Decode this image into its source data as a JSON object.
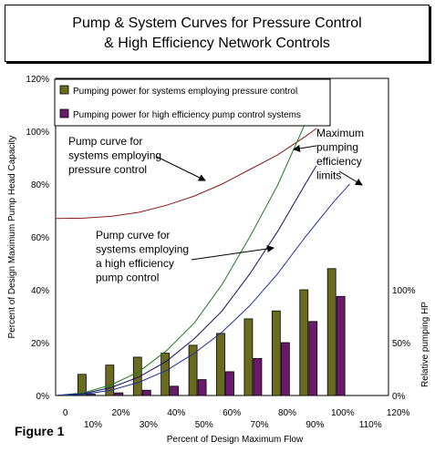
{
  "title": {
    "line1": "Pump & System Curves for Pressure Control",
    "line2": "& High Efficiency Network Controls"
  },
  "figure_label": "Figure 1",
  "chart_data": {
    "type": "bar",
    "xlabel": "Percent of Design Maximum Flow",
    "ylabel": "Percent of Design Maximum Pump Head Capacity",
    "y2label": "Relative pumping HP",
    "x_ticks_upper": [
      "0",
      "20%",
      "40%",
      "60%",
      "80%",
      "100%",
      "120%"
    ],
    "x_ticks_lower": [
      "10%",
      "30%",
      "50%",
      "70%",
      "90%",
      "110%"
    ],
    "y_ticks": [
      "0%",
      "20%",
      "40%",
      "60%",
      "80%",
      "100%",
      "120%"
    ],
    "y2_ticks": [
      "0%",
      "50%",
      "100%"
    ],
    "xlim": [
      0,
      120
    ],
    "ylim": [
      0,
      120
    ],
    "categories": [
      10,
      20,
      30,
      40,
      50,
      60,
      70,
      80,
      90,
      100
    ],
    "series": [
      {
        "name": "Pumping power for systems employing pressure control",
        "color": "#6b6b1f",
        "values": [
          8,
          11.5,
          14.5,
          16,
          19,
          23.5,
          29,
          32,
          40,
          48
        ]
      },
      {
        "name": "Pumping power for high efficiency pump control systems",
        "color": "#6b1a6b",
        "values": [
          0.5,
          1,
          2,
          3.5,
          6,
          9,
          14,
          20,
          28,
          37.5
        ]
      }
    ],
    "curves": [
      {
        "id": "pump-curve",
        "color": "#8b1a1a",
        "points": [
          [
            0,
            67
          ],
          [
            10,
            67.1
          ],
          [
            20,
            67.8
          ],
          [
            30,
            69.3
          ],
          [
            40,
            72
          ],
          [
            50,
            75.5
          ],
          [
            60,
            80
          ],
          [
            70,
            85.5
          ],
          [
            80,
            91
          ],
          [
            90,
            98
          ],
          [
            94,
            101
          ]
        ]
      },
      {
        "id": "system-curve-pressure",
        "color": "#1f7a1f",
        "points": [
          [
            0,
            0
          ],
          [
            10,
            1
          ],
          [
            20,
            4
          ],
          [
            30,
            9
          ],
          [
            40,
            17
          ],
          [
            50,
            27.5
          ],
          [
            60,
            42
          ],
          [
            70,
            60
          ],
          [
            80,
            79.5
          ],
          [
            90,
            103
          ],
          [
            95,
            115
          ]
        ]
      },
      {
        "id": "system-curve-high-efficiency",
        "color": "#101060",
        "points": [
          [
            0,
            0
          ],
          [
            10,
            0.7
          ],
          [
            20,
            3
          ],
          [
            30,
            7
          ],
          [
            40,
            13
          ],
          [
            50,
            21.5
          ],
          [
            60,
            32
          ],
          [
            70,
            46
          ],
          [
            80,
            62
          ],
          [
            90,
            80
          ],
          [
            94,
            87
          ]
        ]
      },
      {
        "id": "max-efficiency-limit",
        "color": "#1f2f9f",
        "points": [
          [
            0,
            0
          ],
          [
            10,
            0.5
          ],
          [
            20,
            2
          ],
          [
            30,
            5
          ],
          [
            40,
            9.5
          ],
          [
            50,
            16
          ],
          [
            60,
            24
          ],
          [
            70,
            34
          ],
          [
            80,
            46
          ],
          [
            90,
            60
          ],
          [
            100,
            73
          ],
          [
            106,
            80
          ]
        ]
      }
    ],
    "annotations": [
      {
        "id": "pump-curve-label",
        "lines": [
          "Pump curve for",
          "systems employing",
          "pressure control"
        ]
      },
      {
        "id": "high-efficiency-label",
        "lines": [
          "Pump curve for",
          "systems employing",
          "a high efficiency",
          "pump control"
        ]
      },
      {
        "id": "max-efficiency-label",
        "lines": [
          "Maximum",
          "pumping",
          "efficiency",
          "limits"
        ]
      }
    ]
  }
}
